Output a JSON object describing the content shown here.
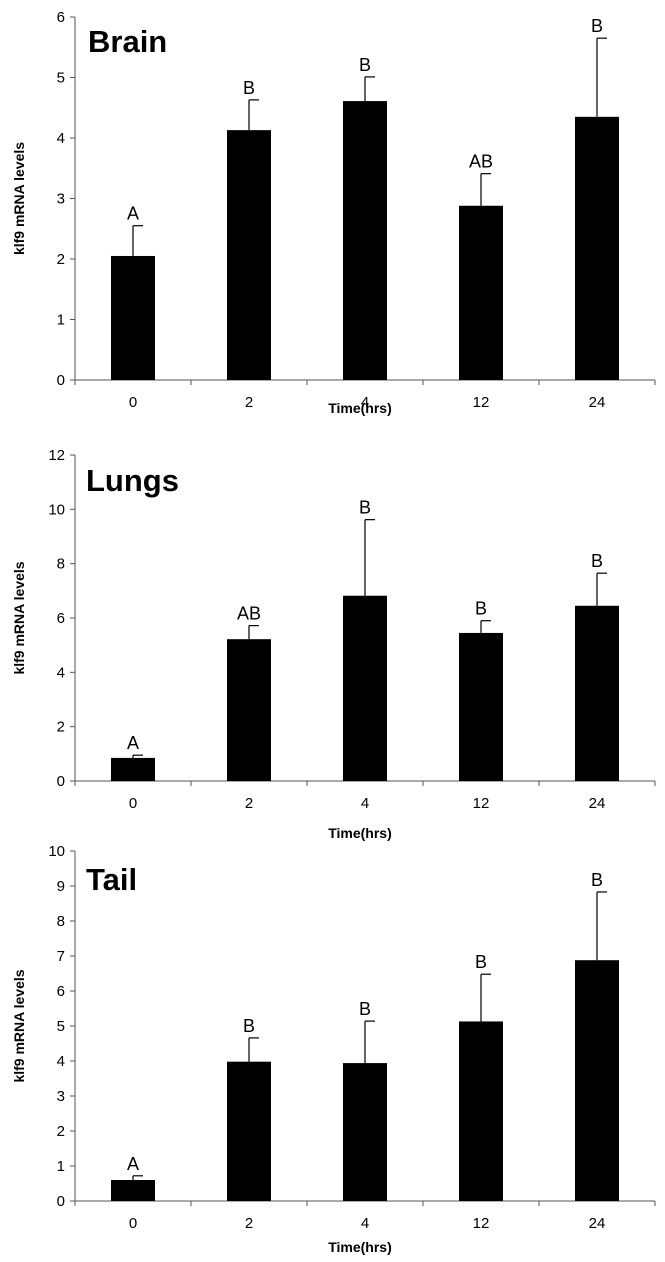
{
  "chart_data": [
    {
      "type": "bar",
      "title": "Brain",
      "xlabel": "Time(hrs)",
      "ylabel": "klf9 mRNA levels",
      "categories": [
        "0",
        "2",
        "4",
        "12",
        "24"
      ],
      "values": [
        2.05,
        4.13,
        4.61,
        2.88,
        4.35
      ],
      "error_upper": [
        0.5,
        0.5,
        0.4,
        0.53,
        1.3
      ],
      "significance": [
        "A",
        "B",
        "B",
        "AB",
        "B"
      ],
      "ylim": [
        0,
        6
      ],
      "yticks": [
        "0",
        "1",
        "2",
        "3",
        "4",
        "5",
        "6"
      ],
      "color": "#000000",
      "grid": false
    },
    {
      "type": "bar",
      "title": "Lungs",
      "xlabel": "Time(hrs)",
      "ylabel": "klf9 mRNA levels",
      "categories": [
        "0",
        "2",
        "4",
        "12",
        "24"
      ],
      "values": [
        0.85,
        5.22,
        6.82,
        5.45,
        6.45
      ],
      "error_upper": [
        0.1,
        0.5,
        2.8,
        0.45,
        1.2
      ],
      "significance": [
        "A",
        "AB",
        "B",
        "B",
        "B"
      ],
      "ylim": [
        0,
        12
      ],
      "yticks": [
        "0",
        "2",
        "4",
        "6",
        "8",
        "10",
        "12"
      ],
      "color": "#000000",
      "grid": false
    },
    {
      "type": "bar",
      "title": "Tail",
      "xlabel": "Time(hrs)",
      "ylabel": "klf9 mRNA levels",
      "categories": [
        "0",
        "2",
        "4",
        "12",
        "24"
      ],
      "values": [
        0.6,
        3.98,
        3.94,
        5.13,
        6.88
      ],
      "error_upper": [
        0.12,
        0.68,
        1.2,
        1.35,
        1.95
      ],
      "significance": [
        "A",
        "B",
        "B",
        "B",
        "B"
      ],
      "ylim": [
        0,
        10
      ],
      "yticks": [
        "0",
        "1",
        "2",
        "3",
        "4",
        "5",
        "6",
        "7",
        "8",
        "9",
        "10"
      ],
      "color": "#000000",
      "grid": false
    }
  ]
}
